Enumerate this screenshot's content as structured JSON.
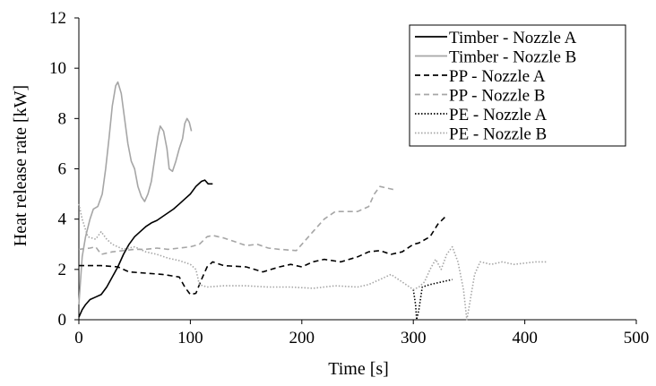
{
  "chart_data": {
    "type": "line",
    "xlabel": "Time [s]",
    "ylabel": "Heat release rate [kW]",
    "xlim": [
      0,
      500
    ],
    "ylim": [
      0,
      12
    ],
    "x_ticks": [
      0,
      100,
      200,
      300,
      400,
      500
    ],
    "y_ticks": [
      0,
      2,
      4,
      6,
      8,
      10,
      12
    ],
    "grid": false,
    "legend_position": "top-right",
    "series": [
      {
        "name": "Timber - Nozzle A",
        "color": "#000000",
        "dash": "solid",
        "points": [
          [
            0,
            0.1
          ],
          [
            3,
            0.4
          ],
          [
            6,
            0.6
          ],
          [
            10,
            0.8
          ],
          [
            15,
            0.9
          ],
          [
            20,
            1.0
          ],
          [
            25,
            1.3
          ],
          [
            30,
            1.7
          ],
          [
            35,
            2.1
          ],
          [
            40,
            2.6
          ],
          [
            45,
            3.0
          ],
          [
            50,
            3.3
          ],
          [
            55,
            3.5
          ],
          [
            60,
            3.7
          ],
          [
            65,
            3.85
          ],
          [
            70,
            3.95
          ],
          [
            75,
            4.1
          ],
          [
            80,
            4.25
          ],
          [
            85,
            4.4
          ],
          [
            90,
            4.6
          ],
          [
            95,
            4.8
          ],
          [
            100,
            5.0
          ],
          [
            105,
            5.3
          ],
          [
            110,
            5.5
          ],
          [
            113,
            5.55
          ],
          [
            116,
            5.4
          ],
          [
            120,
            5.4
          ]
        ]
      },
      {
        "name": "Timber - Nozzle B",
        "color": "#a6a6a6",
        "dash": "solid",
        "points": [
          [
            0,
            0.6
          ],
          [
            3,
            2.5
          ],
          [
            6,
            3.3
          ],
          [
            10,
            4.0
          ],
          [
            13,
            4.4
          ],
          [
            17,
            4.5
          ],
          [
            21,
            5.0
          ],
          [
            24,
            6.0
          ],
          [
            27,
            7.2
          ],
          [
            30,
            8.5
          ],
          [
            33,
            9.3
          ],
          [
            35,
            9.45
          ],
          [
            38,
            9.0
          ],
          [
            41,
            8.0
          ],
          [
            44,
            7.0
          ],
          [
            47,
            6.3
          ],
          [
            50,
            6.0
          ],
          [
            53,
            5.3
          ],
          [
            56,
            4.9
          ],
          [
            59,
            4.7
          ],
          [
            62,
            5.0
          ],
          [
            65,
            5.5
          ],
          [
            68,
            6.4
          ],
          [
            71,
            7.3
          ],
          [
            73,
            7.7
          ],
          [
            76,
            7.5
          ],
          [
            79,
            6.8
          ],
          [
            81,
            6.0
          ],
          [
            84,
            5.9
          ],
          [
            87,
            6.3
          ],
          [
            90,
            6.8
          ],
          [
            93,
            7.2
          ],
          [
            95,
            7.8
          ],
          [
            97,
            8.0
          ],
          [
            99,
            7.85
          ],
          [
            101,
            7.5
          ]
        ]
      },
      {
        "name": "PP - Nozzle A",
        "color": "#000000",
        "dash": "dashed",
        "points": [
          [
            0,
            2.15
          ],
          [
            20,
            2.15
          ],
          [
            35,
            2.1
          ],
          [
            45,
            1.9
          ],
          [
            60,
            1.85
          ],
          [
            75,
            1.8
          ],
          [
            90,
            1.7
          ],
          [
            95,
            1.3
          ],
          [
            100,
            1.0
          ],
          [
            105,
            1.05
          ],
          [
            110,
            1.6
          ],
          [
            115,
            2.1
          ],
          [
            120,
            2.3
          ],
          [
            130,
            2.15
          ],
          [
            150,
            2.1
          ],
          [
            165,
            1.9
          ],
          [
            180,
            2.1
          ],
          [
            190,
            2.2
          ],
          [
            200,
            2.1
          ],
          [
            210,
            2.3
          ],
          [
            220,
            2.4
          ],
          [
            235,
            2.3
          ],
          [
            250,
            2.5
          ],
          [
            260,
            2.7
          ],
          [
            270,
            2.75
          ],
          [
            280,
            2.6
          ],
          [
            290,
            2.7
          ],
          [
            300,
            3.0
          ],
          [
            305,
            3.05
          ],
          [
            315,
            3.3
          ],
          [
            322,
            3.8
          ],
          [
            330,
            4.15
          ]
        ]
      },
      {
        "name": "PP - Nozzle B",
        "color": "#a6a6a6",
        "dash": "dashed",
        "points": [
          [
            0,
            2.8
          ],
          [
            10,
            2.85
          ],
          [
            15,
            2.9
          ],
          [
            20,
            2.6
          ],
          [
            30,
            2.7
          ],
          [
            40,
            2.75
          ],
          [
            50,
            2.8
          ],
          [
            60,
            2.8
          ],
          [
            70,
            2.85
          ],
          [
            80,
            2.8
          ],
          [
            90,
            2.85
          ],
          [
            100,
            2.9
          ],
          [
            108,
            3.0
          ],
          [
            115,
            3.3
          ],
          [
            120,
            3.35
          ],
          [
            130,
            3.25
          ],
          [
            140,
            3.1
          ],
          [
            150,
            2.95
          ],
          [
            160,
            3.0
          ],
          [
            170,
            2.85
          ],
          [
            180,
            2.8
          ],
          [
            195,
            2.75
          ],
          [
            200,
            3.0
          ],
          [
            210,
            3.5
          ],
          [
            220,
            4.0
          ],
          [
            230,
            4.3
          ],
          [
            240,
            4.3
          ],
          [
            250,
            4.3
          ],
          [
            260,
            4.5
          ],
          [
            265,
            5.0
          ],
          [
            270,
            5.3
          ],
          [
            280,
            5.2
          ],
          [
            285,
            5.15
          ]
        ]
      },
      {
        "name": "PE - Nozzle A",
        "color": "#000000",
        "dash": "dotted",
        "points": [
          [
            300,
            1.2
          ],
          [
            302,
            0.6
          ],
          [
            303,
            0.0
          ],
          [
            305,
            0.4
          ],
          [
            308,
            1.3
          ],
          [
            315,
            1.4
          ],
          [
            325,
            1.5
          ],
          [
            330,
            1.55
          ],
          [
            335,
            1.6
          ]
        ]
      },
      {
        "name": "PE - Nozzle B",
        "color": "#a6a6a6",
        "dash": "dotted",
        "points": [
          [
            0,
            4.6
          ],
          [
            3,
            4.0
          ],
          [
            8,
            3.3
          ],
          [
            15,
            3.2
          ],
          [
            20,
            3.5
          ],
          [
            25,
            3.2
          ],
          [
            30,
            3.0
          ],
          [
            40,
            2.8
          ],
          [
            50,
            2.9
          ],
          [
            60,
            2.7
          ],
          [
            70,
            2.6
          ],
          [
            80,
            2.45
          ],
          [
            90,
            2.35
          ],
          [
            100,
            2.2
          ],
          [
            105,
            2.0
          ],
          [
            108,
            1.4
          ],
          [
            115,
            1.3
          ],
          [
            130,
            1.35
          ],
          [
            150,
            1.35
          ],
          [
            170,
            1.3
          ],
          [
            190,
            1.3
          ],
          [
            210,
            1.25
          ],
          [
            230,
            1.35
          ],
          [
            250,
            1.3
          ],
          [
            260,
            1.4
          ],
          [
            270,
            1.6
          ],
          [
            280,
            1.8
          ],
          [
            290,
            1.5
          ],
          [
            300,
            1.2
          ],
          [
            305,
            1.3
          ],
          [
            310,
            1.5
          ],
          [
            315,
            2.0
          ],
          [
            320,
            2.4
          ],
          [
            325,
            2.0
          ],
          [
            330,
            2.6
          ],
          [
            335,
            2.9
          ],
          [
            340,
            2.3
          ],
          [
            345,
            1.2
          ],
          [
            348,
            0.0
          ],
          [
            350,
            0.5
          ],
          [
            355,
            1.8
          ],
          [
            360,
            2.3
          ],
          [
            370,
            2.2
          ],
          [
            380,
            2.3
          ],
          [
            390,
            2.2
          ],
          [
            400,
            2.25
          ],
          [
            410,
            2.3
          ],
          [
            420,
            2.3
          ]
        ]
      }
    ]
  }
}
